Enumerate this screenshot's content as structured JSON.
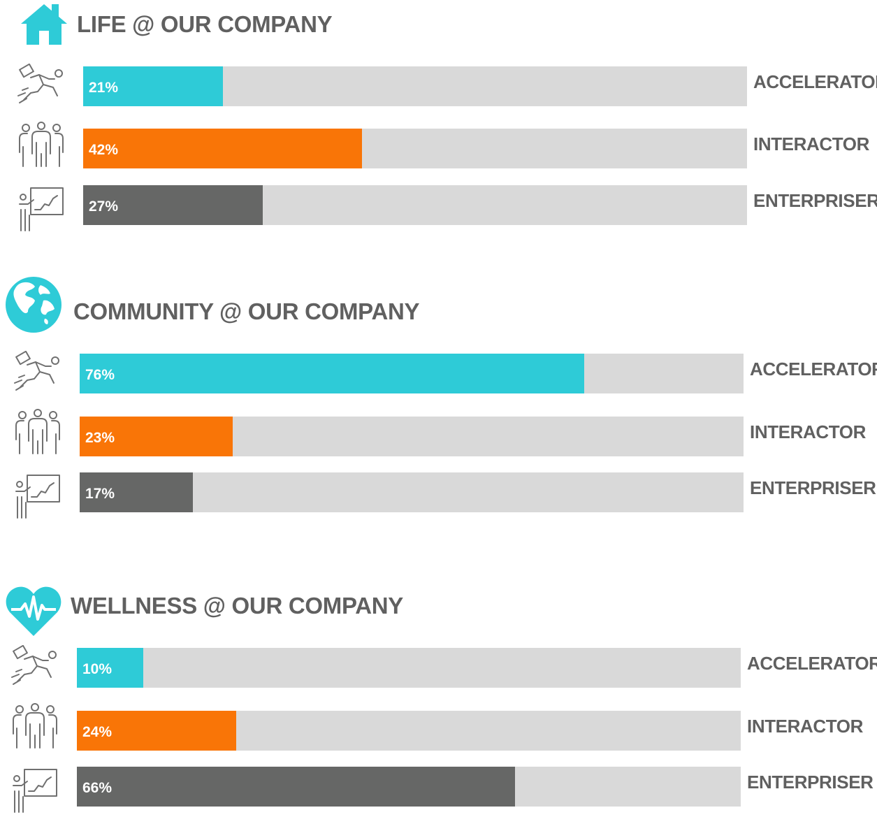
{
  "chart_data": [
    {
      "type": "bar",
      "title": "LIFE @ OUR COMPANY",
      "title_icon": "house-icon",
      "categories": [
        "ACCELERATOR",
        "INTERACTOR",
        "ENTERPRISER"
      ],
      "category_icons": [
        "runner-icon",
        "group-icon",
        "presenter-icon"
      ],
      "values": [
        21,
        42,
        27
      ],
      "value_labels": [
        "21%",
        "42%",
        "27%"
      ],
      "ylim": [
        0,
        100
      ]
    },
    {
      "type": "bar",
      "title": "COMMUNITY @ OUR COMPANY",
      "title_icon": "globe-icon",
      "categories": [
        "ACCELERATOR",
        "INTERACTOR",
        "ENTERPRISER"
      ],
      "category_icons": [
        "runner-icon",
        "group-icon",
        "presenter-icon"
      ],
      "values": [
        76,
        23,
        17
      ],
      "value_labels": [
        "76%",
        "23%",
        "17%"
      ],
      "ylim": [
        0,
        100
      ]
    },
    {
      "type": "bar",
      "title": "WELLNESS @ OUR COMPANY",
      "title_icon": "heartbeat-icon",
      "categories": [
        "ACCELERATOR",
        "INTERACTOR",
        "ENTERPRISER"
      ],
      "category_icons": [
        "runner-icon",
        "group-icon",
        "presenter-icon"
      ],
      "values": [
        10,
        24,
        66
      ],
      "value_labels": [
        "10%",
        "24%",
        "66%"
      ],
      "ylim": [
        0,
        100
      ]
    }
  ],
  "colors": {
    "accelerator": "#2ecbd7",
    "interactor": "#f97507",
    "enterpriser": "#666766",
    "track": "#d9d9d9",
    "text": "#606060",
    "icon_accent": "#2ecbd7"
  }
}
